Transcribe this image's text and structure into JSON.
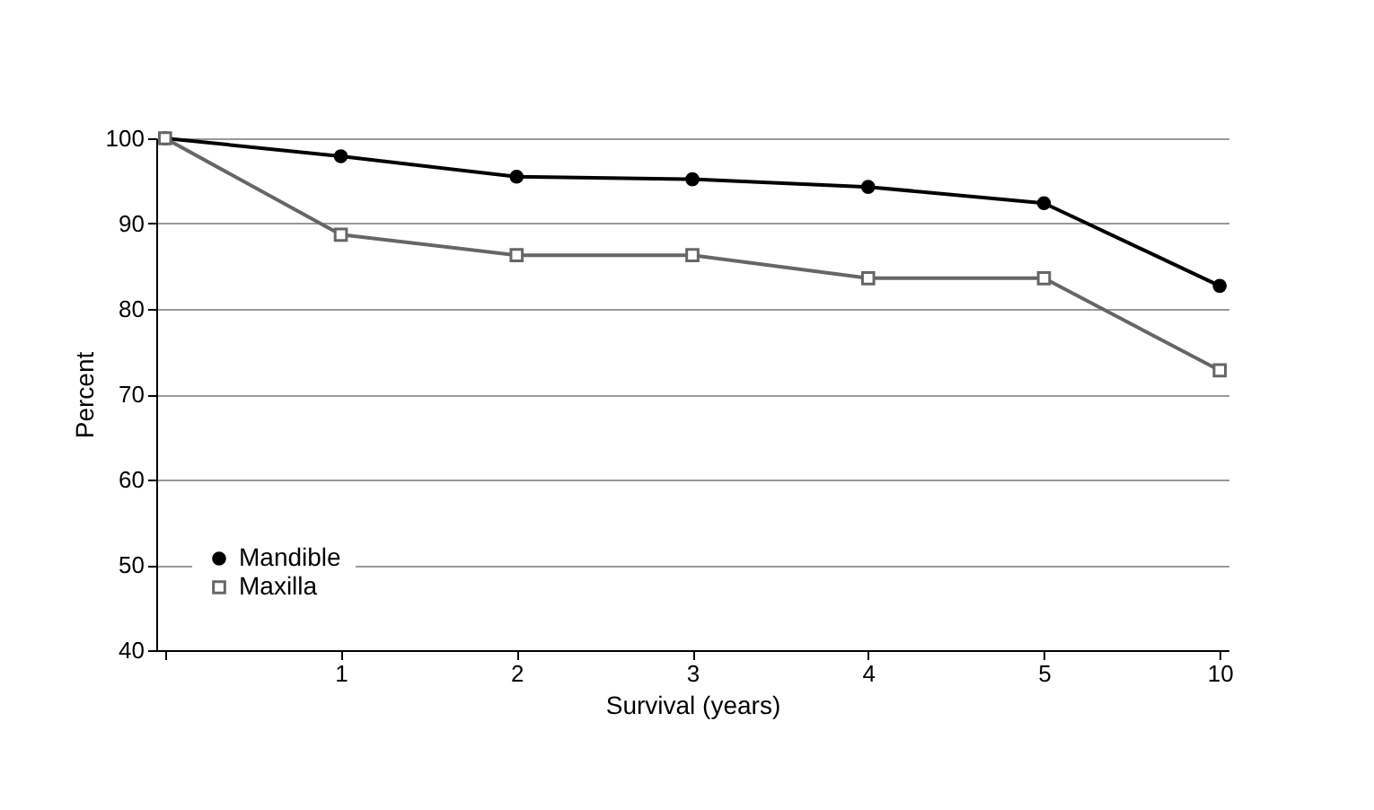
{
  "chart_data": {
    "type": "line",
    "xlabel": "Survival (years)",
    "ylabel": "Percent",
    "categories": [
      null,
      "1",
      "2",
      "3",
      "4",
      "5",
      "10"
    ],
    "series": [
      {
        "name": "Mandible",
        "color": "#000000",
        "marker": "circle",
        "values": [
          100,
          97.9,
          95.5,
          95.2,
          94.3,
          92.4,
          82.7
        ]
      },
      {
        "name": "Maxilla",
        "color": "#666666",
        "marker": "square",
        "values": [
          100,
          88.7,
          86.3,
          86.3,
          83.6,
          83.6,
          72.8
        ]
      }
    ],
    "ylim": [
      40,
      100
    ],
    "yticks": [
      40,
      50,
      60,
      70,
      80,
      90,
      100
    ],
    "grid": "y",
    "legend": "bottom left",
    "line_style": "solid"
  }
}
